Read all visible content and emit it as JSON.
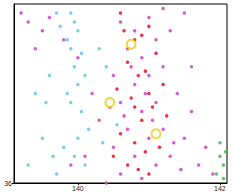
{
  "chart_data": {
    "type": "scatter",
    "xlim": [
      139.1,
      142.1
    ],
    "ylim": [
      36,
      38
    ],
    "xticks": [
      140,
      142
    ],
    "yticks": [
      36
    ],
    "grid": false,
    "series": [
      {
        "color": "#60c8e0",
        "marker": "circle",
        "values": [
          [
            139.9,
            37.9
          ],
          [
            139.95,
            37.8
          ],
          [
            140.0,
            37.7
          ],
          [
            139.85,
            37.6
          ],
          [
            139.9,
            37.5
          ],
          [
            140.05,
            37.45
          ],
          [
            139.95,
            37.3
          ],
          [
            140.1,
            37.2
          ],
          [
            140.0,
            37.1
          ],
          [
            139.85,
            37.0
          ],
          [
            139.9,
            36.9
          ],
          [
            140.05,
            36.8
          ],
          [
            140.15,
            36.6
          ],
          [
            140.0,
            36.5
          ],
          [
            139.8,
            36.4
          ],
          [
            139.95,
            36.3
          ],
          [
            140.1,
            36.2
          ],
          [
            139.7,
            36.1
          ],
          [
            139.75,
            37.75
          ],
          [
            139.6,
            37.2
          ],
          [
            139.55,
            36.9
          ],
          [
            139.5,
            36.5
          ],
          [
            139.65,
            36.3
          ],
          [
            139.3,
            36.2
          ],
          [
            139.4,
            37.0
          ],
          [
            140.3,
            37.5
          ],
          [
            140.4,
            37.3
          ],
          [
            140.55,
            36.65
          ],
          [
            140.35,
            36.45
          ],
          [
            139.7,
            37.9
          ]
        ]
      },
      {
        "color": "#d040c8",
        "marker": "circle",
        "values": [
          [
            140.6,
            37.8
          ],
          [
            140.8,
            37.7
          ],
          [
            141.0,
            37.85
          ],
          [
            140.7,
            37.5
          ],
          [
            140.9,
            37.4
          ],
          [
            141.1,
            37.6
          ],
          [
            141.3,
            37.7
          ],
          [
            140.5,
            37.2
          ],
          [
            140.8,
            37.1
          ],
          [
            141.0,
            37.2
          ],
          [
            141.2,
            37.3
          ],
          [
            140.6,
            36.9
          ],
          [
            140.9,
            36.8
          ],
          [
            141.1,
            36.9
          ],
          [
            141.4,
            37.0
          ],
          [
            140.7,
            36.6
          ],
          [
            141.0,
            36.5
          ],
          [
            141.2,
            36.6
          ],
          [
            140.5,
            36.4
          ],
          [
            140.8,
            36.3
          ],
          [
            141.1,
            36.2
          ],
          [
            141.3,
            36.3
          ],
          [
            140.6,
            36.1
          ],
          [
            140.9,
            36.05
          ],
          [
            141.5,
            36.5
          ],
          [
            141.6,
            36.8
          ],
          [
            141.7,
            36.2
          ],
          [
            141.8,
            36.4
          ],
          [
            141.9,
            36.1
          ],
          [
            141.6,
            37.3
          ],
          [
            141.5,
            37.9
          ],
          [
            139.3,
            37.8
          ],
          [
            139.5,
            37.7
          ],
          [
            139.4,
            37.5
          ],
          [
            139.2,
            37.9
          ],
          [
            139.6,
            37.85
          ],
          [
            139.8,
            37.6
          ],
          [
            140.0,
            37.4
          ],
          [
            140.2,
            37.0
          ],
          [
            140.3,
            36.7
          ],
          [
            140.1,
            36.3
          ],
          [
            140.4,
            36.0
          ],
          [
            139.9,
            36.2
          ],
          [
            141.2,
            37.95
          ],
          [
            140.75,
            37.3
          ],
          [
            140.95,
            37.0
          ],
          [
            141.05,
            36.7
          ],
          [
            140.65,
            36.75
          ],
          [
            141.35,
            36.45
          ],
          [
            141.45,
            36.15
          ]
        ]
      },
      {
        "color": "#e8102a",
        "marker": "circle",
        "values": [
          [
            140.6,
            37.9
          ],
          [
            140.8,
            37.6
          ],
          [
            140.9,
            37.65
          ],
          [
            140.7,
            37.35
          ],
          [
            140.85,
            37.2
          ],
          [
            140.95,
            37.25
          ],
          [
            141.0,
            37.0
          ],
          [
            140.75,
            36.95
          ],
          [
            140.9,
            36.7
          ],
          [
            141.05,
            36.85
          ],
          [
            140.6,
            36.55
          ],
          [
            140.8,
            36.45
          ],
          [
            140.95,
            36.35
          ],
          [
            141.15,
            36.4
          ],
          [
            140.7,
            36.2
          ],
          [
            140.85,
            36.15
          ],
          [
            141.0,
            36.1
          ],
          [
            140.55,
            37.05
          ],
          [
            141.2,
            37.1
          ],
          [
            141.1,
            37.45
          ],
          [
            140.65,
            37.7
          ],
          [
            141.0,
            37.75
          ],
          [
            140.8,
            36.85
          ],
          [
            141.25,
            36.75
          ],
          [
            140.5,
            36.3
          ],
          [
            140.45,
            36.85
          ]
        ]
      },
      {
        "color": "#40c040",
        "marker": "circle",
        "values": [
          [
            142.0,
            36.3
          ],
          [
            142.05,
            36.2
          ],
          [
            141.95,
            36.1
          ],
          [
            142.05,
            36.05
          ],
          [
            142.0,
            36.45
          ],
          [
            142.08,
            36.35
          ]
        ]
      },
      {
        "color": "#e8d020",
        "marker": "ring",
        "values": [
          [
            140.75,
            37.55
          ],
          [
            140.45,
            36.9
          ],
          [
            141.1,
            36.55
          ]
        ]
      }
    ]
  }
}
